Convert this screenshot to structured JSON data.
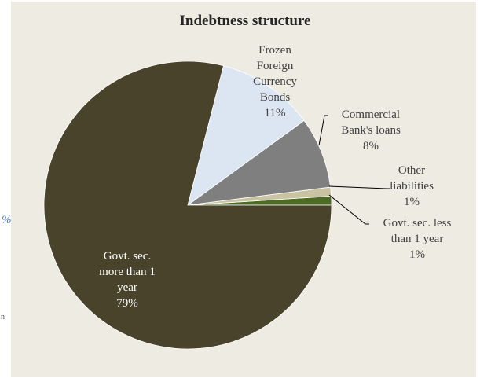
{
  "page_fragments": {
    "left_mark": "%",
    "left_dot": "n"
  },
  "chart_data": {
    "type": "pie",
    "title": "Indebtness structure",
    "start_angle_deg": 0,
    "direction": "counterclockwise",
    "slices": [
      {
        "label_lines": [
          "Govt. sec. less",
          "than 1 year",
          "1%"
        ],
        "value": 1,
        "color": "#4e6b26"
      },
      {
        "label_lines": [
          "Other",
          "liabilities",
          "1%"
        ],
        "value": 1,
        "color": "#c9c3a4"
      },
      {
        "label_lines": [
          "Commercial",
          "Bank's loans",
          "8%"
        ],
        "value": 8,
        "color": "#7f7f7f"
      },
      {
        "label_lines": [
          "Frozen",
          "Foreign",
          "Currency",
          "Bonds",
          "11%"
        ],
        "value": 11,
        "color": "#dce6f2"
      },
      {
        "label_lines": [
          "Govt. sec.",
          "more than 1",
          "year",
          "79%"
        ],
        "value": 79,
        "color": "#4a432b"
      }
    ]
  }
}
